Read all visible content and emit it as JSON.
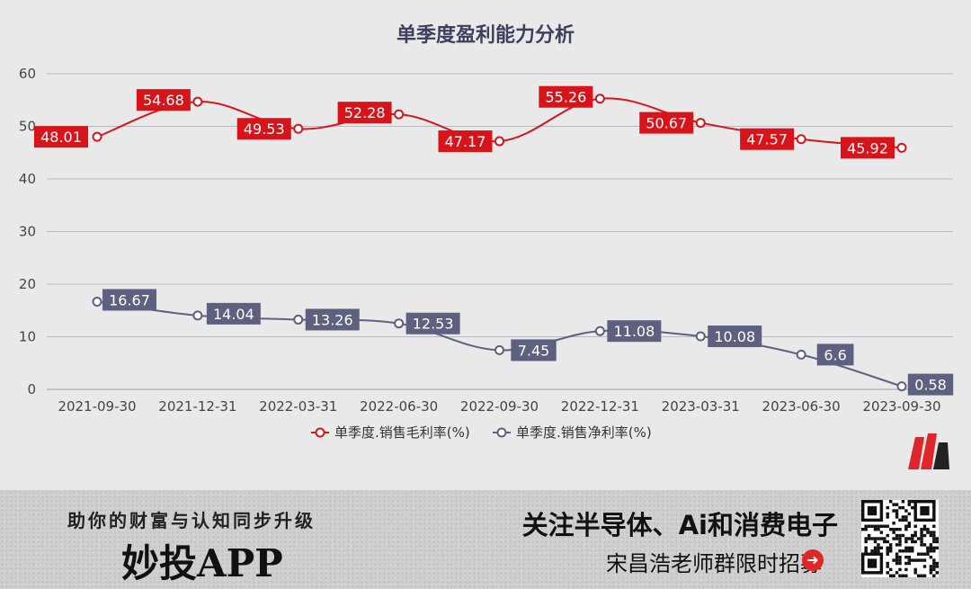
{
  "chart_data": {
    "type": "line",
    "title": "单季度盈利能力分析",
    "categories": [
      "2021-09-30",
      "2021-12-31",
      "2022-03-31",
      "2022-06-30",
      "2022-09-30",
      "2022-12-31",
      "2023-03-31",
      "2023-06-30",
      "2023-09-30"
    ],
    "ylim": [
      0,
      60
    ],
    "yticks": [
      "0",
      "10",
      "20",
      "30",
      "40",
      "50",
      "60"
    ],
    "grid": true,
    "legend_position": "bottom",
    "series": [
      {
        "name": "单季度.销售毛利率(%)",
        "color": "#d7141a",
        "values": [
          48.01,
          54.68,
          49.53,
          52.28,
          47.17,
          55.26,
          50.67,
          47.57,
          45.92
        ],
        "labels": [
          "48.01",
          "54.68",
          "49.53",
          "52.28",
          "47.17",
          "55.26",
          "50.67",
          "47.57",
          "45.92"
        ]
      },
      {
        "name": "单季度.销售净利率(%)",
        "color": "#5e6080",
        "values": [
          16.67,
          14.04,
          13.26,
          12.53,
          7.45,
          11.08,
          10.08,
          6.6,
          0.58
        ],
        "labels": [
          "16.67",
          "14.04",
          "13.26",
          "12.53",
          "7.45",
          "11.08",
          "10.08",
          "6.6",
          "0.58"
        ]
      }
    ]
  },
  "banner": {
    "slogan": "助你的财富与认知同步升级",
    "app_name": "妙投APP",
    "promo_main": "关注半导体、Ai和消费电子",
    "promo_sub": "宋昌浩老师群限时招募"
  },
  "icons": {
    "arrow": "arrow-right-circle-icon",
    "qr": "qr-code-icon",
    "logo": "brand-logo-icon"
  }
}
